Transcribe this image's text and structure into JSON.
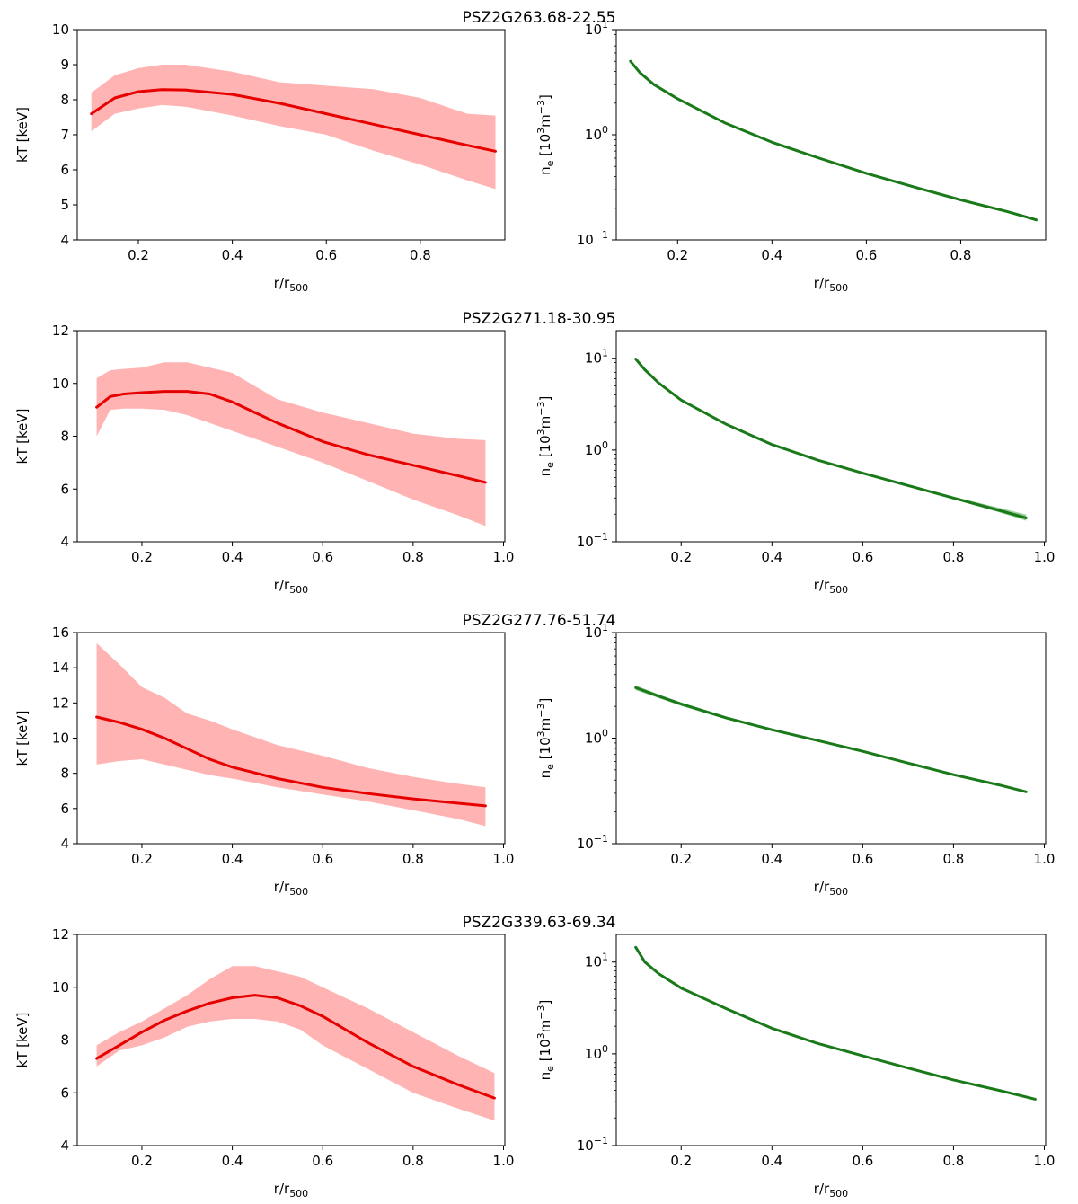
{
  "figure": {
    "colors": {
      "temperature_line": "#e60000",
      "temperature_band": "#ffb3b3",
      "density_line": "#1a7a1a",
      "density_band": "#8cc98c",
      "axes": "#000000"
    }
  },
  "chart_data": [
    {
      "type": "area",
      "name": "PSZ2G263.68-22.55 temperature",
      "title": "PSZ2G263.68-22.55",
      "xlabel": "r/r500",
      "ylabel": "kT [keV]",
      "xlim": [
        0.07,
        0.98
      ],
      "ylim": [
        4,
        10
      ],
      "yscale": "linear",
      "xticks": [
        0.2,
        0.4,
        0.6,
        0.8
      ],
      "xtick_labels": [
        "0.2",
        "0.4",
        "0.6",
        "0.8"
      ],
      "yticks": [
        4,
        5,
        6,
        7,
        8,
        9,
        10
      ],
      "ytick_labels": [
        "4",
        "5",
        "6",
        "7",
        "8",
        "9",
        "10"
      ],
      "series": [
        {
          "name": "kT",
          "x": [
            0.1,
            0.15,
            0.2,
            0.25,
            0.3,
            0.4,
            0.5,
            0.6,
            0.7,
            0.8,
            0.9,
            0.96
          ],
          "values": [
            7.6,
            8.05,
            8.23,
            8.29,
            8.28,
            8.15,
            7.9,
            7.6,
            7.3,
            7.0,
            6.7,
            6.53
          ],
          "upper": [
            8.2,
            8.7,
            8.9,
            9.0,
            9.0,
            8.8,
            8.5,
            8.4,
            8.3,
            8.05,
            7.6,
            7.55
          ],
          "lower": [
            7.1,
            7.6,
            7.75,
            7.85,
            7.8,
            7.55,
            7.25,
            7.0,
            6.55,
            6.15,
            5.7,
            5.45
          ]
        }
      ]
    },
    {
      "type": "area",
      "name": "PSZ2G263.68-22.55 density",
      "xlabel": "r/r500",
      "ylabel": "ne [10³m⁻³]",
      "xlim": [
        0.07,
        0.98
      ],
      "ylim": [
        0.1,
        10
      ],
      "yscale": "log",
      "xticks": [
        0.2,
        0.4,
        0.6,
        0.8
      ],
      "xtick_labels": [
        "0.2",
        "0.4",
        "0.6",
        "0.8"
      ],
      "yticks": [
        0.1,
        1,
        10
      ],
      "ytick_labels": [
        "10⁻¹",
        "10⁰",
        "10¹"
      ],
      "series": [
        {
          "name": "ne",
          "x": [
            0.1,
            0.12,
            0.15,
            0.2,
            0.3,
            0.4,
            0.5,
            0.6,
            0.7,
            0.8,
            0.9,
            0.96
          ],
          "values": [
            5.0,
            3.9,
            3.0,
            2.2,
            1.3,
            0.85,
            0.6,
            0.43,
            0.32,
            0.24,
            0.185,
            0.155
          ],
          "upper": [
            5.15,
            4.0,
            3.08,
            2.25,
            1.33,
            0.87,
            0.615,
            0.44,
            0.327,
            0.246,
            0.19,
            0.159
          ],
          "lower": [
            4.85,
            3.8,
            2.92,
            2.15,
            1.27,
            0.83,
            0.585,
            0.42,
            0.313,
            0.234,
            0.18,
            0.151
          ]
        }
      ]
    },
    {
      "type": "area",
      "name": "PSZ2G271.18-30.95 temperature",
      "title": "PSZ2G271.18-30.95",
      "xlabel": "r/r500",
      "ylabel": "kT [keV]",
      "xlim": [
        0.057,
        1.003
      ],
      "ylim": [
        4,
        12
      ],
      "yscale": "linear",
      "xticks": [
        0.2,
        0.4,
        0.6,
        0.8,
        1.0
      ],
      "xtick_labels": [
        "0.2",
        "0.4",
        "0.6",
        "0.8",
        "1.0"
      ],
      "yticks": [
        4,
        6,
        8,
        10,
        12
      ],
      "ytick_labels": [
        "4",
        "6",
        "8",
        "10",
        "12"
      ],
      "series": [
        {
          "name": "kT",
          "x": [
            0.1,
            0.13,
            0.16,
            0.2,
            0.25,
            0.3,
            0.35,
            0.4,
            0.45,
            0.5,
            0.6,
            0.7,
            0.8,
            0.9,
            0.96
          ],
          "values": [
            9.1,
            9.5,
            9.6,
            9.65,
            9.7,
            9.7,
            9.6,
            9.3,
            8.9,
            8.5,
            7.8,
            7.3,
            6.9,
            6.5,
            6.25
          ],
          "upper": [
            10.2,
            10.5,
            10.55,
            10.6,
            10.8,
            10.8,
            10.6,
            10.4,
            9.9,
            9.4,
            8.9,
            8.5,
            8.1,
            7.9,
            7.85
          ],
          "lower": [
            8.0,
            9.0,
            9.05,
            9.05,
            9.0,
            8.8,
            8.5,
            8.2,
            7.9,
            7.6,
            7.0,
            6.3,
            5.6,
            5.0,
            4.6
          ]
        }
      ]
    },
    {
      "type": "area",
      "name": "PSZ2G271.18-30.95 density",
      "xlabel": "r/r500",
      "ylabel": "ne [10³m⁻³]",
      "xlim": [
        0.057,
        1.003
      ],
      "ylim": [
        0.1,
        20
      ],
      "yscale": "log",
      "xticks": [
        0.2,
        0.4,
        0.6,
        0.8,
        1.0
      ],
      "xtick_labels": [
        "0.2",
        "0.4",
        "0.6",
        "0.8",
        "1.0"
      ],
      "yticks": [
        0.1,
        1,
        10
      ],
      "ytick_labels": [
        "10⁻¹",
        "10⁰",
        "10¹"
      ],
      "series": [
        {
          "name": "ne",
          "x": [
            0.1,
            0.12,
            0.15,
            0.2,
            0.3,
            0.4,
            0.5,
            0.6,
            0.7,
            0.8,
            0.9,
            0.96
          ],
          "values": [
            9.8,
            7.5,
            5.4,
            3.5,
            1.9,
            1.15,
            0.78,
            0.56,
            0.41,
            0.3,
            0.22,
            0.182
          ],
          "upper": [
            10.1,
            7.7,
            5.55,
            3.6,
            1.95,
            1.18,
            0.8,
            0.575,
            0.42,
            0.31,
            0.235,
            0.198
          ],
          "lower": [
            9.5,
            7.3,
            5.25,
            3.4,
            1.85,
            1.12,
            0.76,
            0.545,
            0.4,
            0.29,
            0.21,
            0.17
          ]
        }
      ]
    },
    {
      "type": "area",
      "name": "PSZ2G277.76-51.74 temperature",
      "title": "PSZ2G277.76-51.74",
      "xlabel": "r/r500",
      "ylabel": "kT [keV]",
      "xlim": [
        0.057,
        1.003
      ],
      "ylim": [
        4,
        16
      ],
      "yscale": "linear",
      "xticks": [
        0.2,
        0.4,
        0.6,
        0.8,
        1.0
      ],
      "xtick_labels": [
        "0.2",
        "0.4",
        "0.6",
        "0.8",
        "1.0"
      ],
      "yticks": [
        4,
        6,
        8,
        10,
        12,
        14,
        16
      ],
      "ytick_labels": [
        "4",
        "6",
        "8",
        "10",
        "12",
        "14",
        "16"
      ],
      "series": [
        {
          "name": "kT",
          "x": [
            0.1,
            0.15,
            0.2,
            0.25,
            0.3,
            0.35,
            0.4,
            0.5,
            0.6,
            0.7,
            0.8,
            0.9,
            0.96
          ],
          "values": [
            11.2,
            10.9,
            10.5,
            10.0,
            9.4,
            8.8,
            8.35,
            7.7,
            7.2,
            6.85,
            6.55,
            6.3,
            6.15
          ],
          "upper": [
            15.4,
            14.2,
            12.9,
            12.3,
            11.4,
            11.0,
            10.5,
            9.6,
            9.0,
            8.3,
            7.8,
            7.4,
            7.2
          ],
          "lower": [
            8.5,
            8.7,
            8.8,
            8.5,
            8.2,
            7.9,
            7.7,
            7.2,
            6.8,
            6.4,
            5.9,
            5.4,
            5.0
          ]
        }
      ]
    },
    {
      "type": "area",
      "name": "PSZ2G277.76-51.74 density",
      "xlabel": "r/r500",
      "ylabel": "ne [10³m⁻³]",
      "xlim": [
        0.057,
        1.003
      ],
      "ylim": [
        0.1,
        10
      ],
      "yscale": "log",
      "xticks": [
        0.2,
        0.4,
        0.6,
        0.8,
        1.0
      ],
      "xtick_labels": [
        "0.2",
        "0.4",
        "0.6",
        "0.8",
        "1.0"
      ],
      "yticks": [
        0.1,
        1,
        10
      ],
      "ytick_labels": [
        "10⁻¹",
        "10⁰",
        "10¹"
      ],
      "series": [
        {
          "name": "ne",
          "x": [
            0.1,
            0.15,
            0.2,
            0.3,
            0.4,
            0.5,
            0.6,
            0.7,
            0.8,
            0.9,
            0.96
          ],
          "values": [
            3.0,
            2.5,
            2.1,
            1.55,
            1.2,
            0.95,
            0.75,
            0.58,
            0.45,
            0.36,
            0.31
          ],
          "upper": [
            3.15,
            2.6,
            2.18,
            1.6,
            1.23,
            0.97,
            0.77,
            0.595,
            0.46,
            0.368,
            0.318
          ],
          "lower": [
            2.85,
            2.4,
            2.02,
            1.5,
            1.17,
            0.93,
            0.73,
            0.565,
            0.44,
            0.352,
            0.302
          ]
        }
      ]
    },
    {
      "type": "area",
      "name": "PSZ2G339.63-69.34 temperature",
      "title": "PSZ2G339.63-69.34",
      "xlabel": "r/r500",
      "ylabel": "kT [keV]",
      "xlim": [
        0.057,
        1.003
      ],
      "ylim": [
        4,
        12
      ],
      "yscale": "linear",
      "xticks": [
        0.2,
        0.4,
        0.6,
        0.8,
        1.0
      ],
      "xtick_labels": [
        "0.2",
        "0.4",
        "0.6",
        "0.8",
        "1.0"
      ],
      "yticks": [
        4,
        6,
        8,
        10,
        12
      ],
      "ytick_labels": [
        "4",
        "6",
        "8",
        "10",
        "12"
      ],
      "series": [
        {
          "name": "kT",
          "x": [
            0.1,
            0.15,
            0.2,
            0.25,
            0.3,
            0.35,
            0.4,
            0.45,
            0.5,
            0.55,
            0.6,
            0.7,
            0.8,
            0.9,
            0.98
          ],
          "values": [
            7.3,
            7.8,
            8.3,
            8.75,
            9.1,
            9.4,
            9.6,
            9.7,
            9.6,
            9.3,
            8.9,
            7.9,
            7.0,
            6.3,
            5.8
          ],
          "upper": [
            7.8,
            8.3,
            8.7,
            9.2,
            9.7,
            10.3,
            10.8,
            10.8,
            10.6,
            10.4,
            10.0,
            9.2,
            8.3,
            7.4,
            6.75
          ],
          "lower": [
            7.0,
            7.6,
            7.8,
            8.1,
            8.5,
            8.7,
            8.8,
            8.8,
            8.7,
            8.4,
            7.8,
            6.9,
            6.0,
            5.4,
            4.95
          ]
        }
      ]
    },
    {
      "type": "area",
      "name": "PSZ2G339.63-69.34 density",
      "xlabel": "r/r500",
      "ylabel": "ne [10³m⁻³]",
      "xlim": [
        0.057,
        1.003
      ],
      "ylim": [
        0.1,
        20
      ],
      "yscale": "log",
      "xticks": [
        0.2,
        0.4,
        0.6,
        0.8,
        1.0
      ],
      "xtick_labels": [
        "0.2",
        "0.4",
        "0.6",
        "0.8",
        "1.0"
      ],
      "yticks": [
        0.1,
        1,
        10
      ],
      "ytick_labels": [
        "10⁻¹",
        "10⁰",
        "10¹"
      ],
      "series": [
        {
          "name": "ne",
          "x": [
            0.1,
            0.12,
            0.15,
            0.2,
            0.3,
            0.4,
            0.5,
            0.6,
            0.7,
            0.8,
            0.9,
            0.98
          ],
          "values": [
            14.5,
            10.0,
            7.5,
            5.2,
            3.1,
            1.9,
            1.3,
            0.95,
            0.7,
            0.52,
            0.4,
            0.32
          ],
          "upper": [
            14.9,
            10.3,
            7.7,
            5.35,
            3.18,
            1.95,
            1.33,
            0.97,
            0.715,
            0.53,
            0.41,
            0.328
          ],
          "lower": [
            14.1,
            9.7,
            7.3,
            5.05,
            3.02,
            1.85,
            1.27,
            0.93,
            0.685,
            0.51,
            0.39,
            0.312
          ]
        }
      ]
    }
  ]
}
